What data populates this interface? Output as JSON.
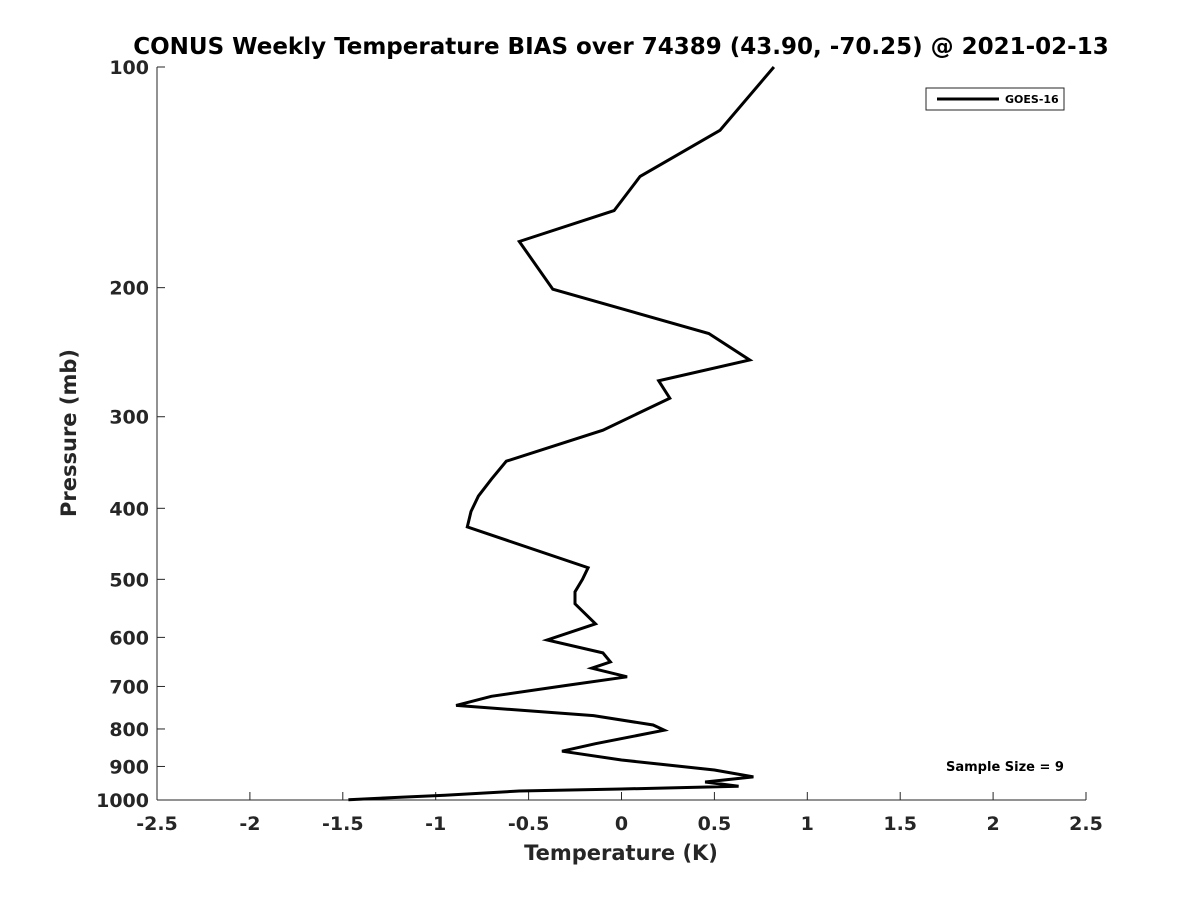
{
  "chart_data": {
    "type": "line",
    "title": "CONUS Weekly Temperature BIAS over 74389 (43.90, -70.25) @ 2021-02-13",
    "xlabel": "Temperature (K)",
    "ylabel": "Pressure (mb)",
    "xlim": [
      -2.5,
      2.5
    ],
    "ylim": [
      1000,
      100
    ],
    "yscale": "log",
    "y_reversed": true,
    "x_ticks": [
      -2.5,
      -2,
      -1.5,
      -1,
      -0.5,
      0,
      0.5,
      1,
      1.5,
      2,
      2.5
    ],
    "x_tick_labels": [
      "-2.5",
      "-2",
      "-1.5",
      "-1",
      "-0.5",
      "0",
      "0.5",
      "1",
      "1.5",
      "2",
      "2.5"
    ],
    "y_ticks": [
      100,
      200,
      300,
      400,
      500,
      600,
      700,
      800,
      900,
      1000
    ],
    "y_tick_labels": [
      "100",
      "200",
      "300",
      "400",
      "500",
      "600",
      "700",
      "800",
      "900",
      "1000"
    ],
    "grid": false,
    "legend": {
      "placement": "top-right",
      "entries": [
        "GOES-16"
      ]
    },
    "annotation": "Sample Size = 9",
    "series": [
      {
        "name": "GOES-16",
        "color": "#000000",
        "points": [
          {
            "x": 0.82,
            "y": 100
          },
          {
            "x": 0.53,
            "y": 122
          },
          {
            "x": 0.1,
            "y": 141
          },
          {
            "x": -0.04,
            "y": 157
          },
          {
            "x": -0.55,
            "y": 173
          },
          {
            "x": -0.37,
            "y": 201
          },
          {
            "x": 0.47,
            "y": 231
          },
          {
            "x": 0.69,
            "y": 251
          },
          {
            "x": 0.2,
            "y": 268
          },
          {
            "x": 0.26,
            "y": 283
          },
          {
            "x": -0.1,
            "y": 313
          },
          {
            "x": -0.62,
            "y": 345
          },
          {
            "x": -0.7,
            "y": 365
          },
          {
            "x": -0.77,
            "y": 385
          },
          {
            "x": -0.81,
            "y": 404
          },
          {
            "x": -0.83,
            "y": 424
          },
          {
            "x": -0.18,
            "y": 482
          },
          {
            "x": -0.21,
            "y": 500
          },
          {
            "x": -0.25,
            "y": 520
          },
          {
            "x": -0.25,
            "y": 540
          },
          {
            "x": -0.14,
            "y": 575
          },
          {
            "x": -0.4,
            "y": 605
          },
          {
            "x": -0.1,
            "y": 630
          },
          {
            "x": -0.06,
            "y": 648
          },
          {
            "x": -0.16,
            "y": 661
          },
          {
            "x": 0.03,
            "y": 679
          },
          {
            "x": -0.3,
            "y": 698
          },
          {
            "x": -0.7,
            "y": 722
          },
          {
            "x": -0.89,
            "y": 743
          },
          {
            "x": -0.15,
            "y": 767
          },
          {
            "x": 0.17,
            "y": 790
          },
          {
            "x": 0.23,
            "y": 803
          },
          {
            "x": -0.14,
            "y": 838
          },
          {
            "x": -0.32,
            "y": 858
          },
          {
            "x": 0.0,
            "y": 882
          },
          {
            "x": 0.5,
            "y": 910
          },
          {
            "x": 0.71,
            "y": 930
          },
          {
            "x": 0.45,
            "y": 945
          },
          {
            "x": 0.63,
            "y": 958
          },
          {
            "x": 0.0,
            "y": 966
          },
          {
            "x": -0.55,
            "y": 972
          },
          {
            "x": -0.95,
            "y": 985
          },
          {
            "x": -1.47,
            "y": 999
          }
        ]
      }
    ]
  }
}
